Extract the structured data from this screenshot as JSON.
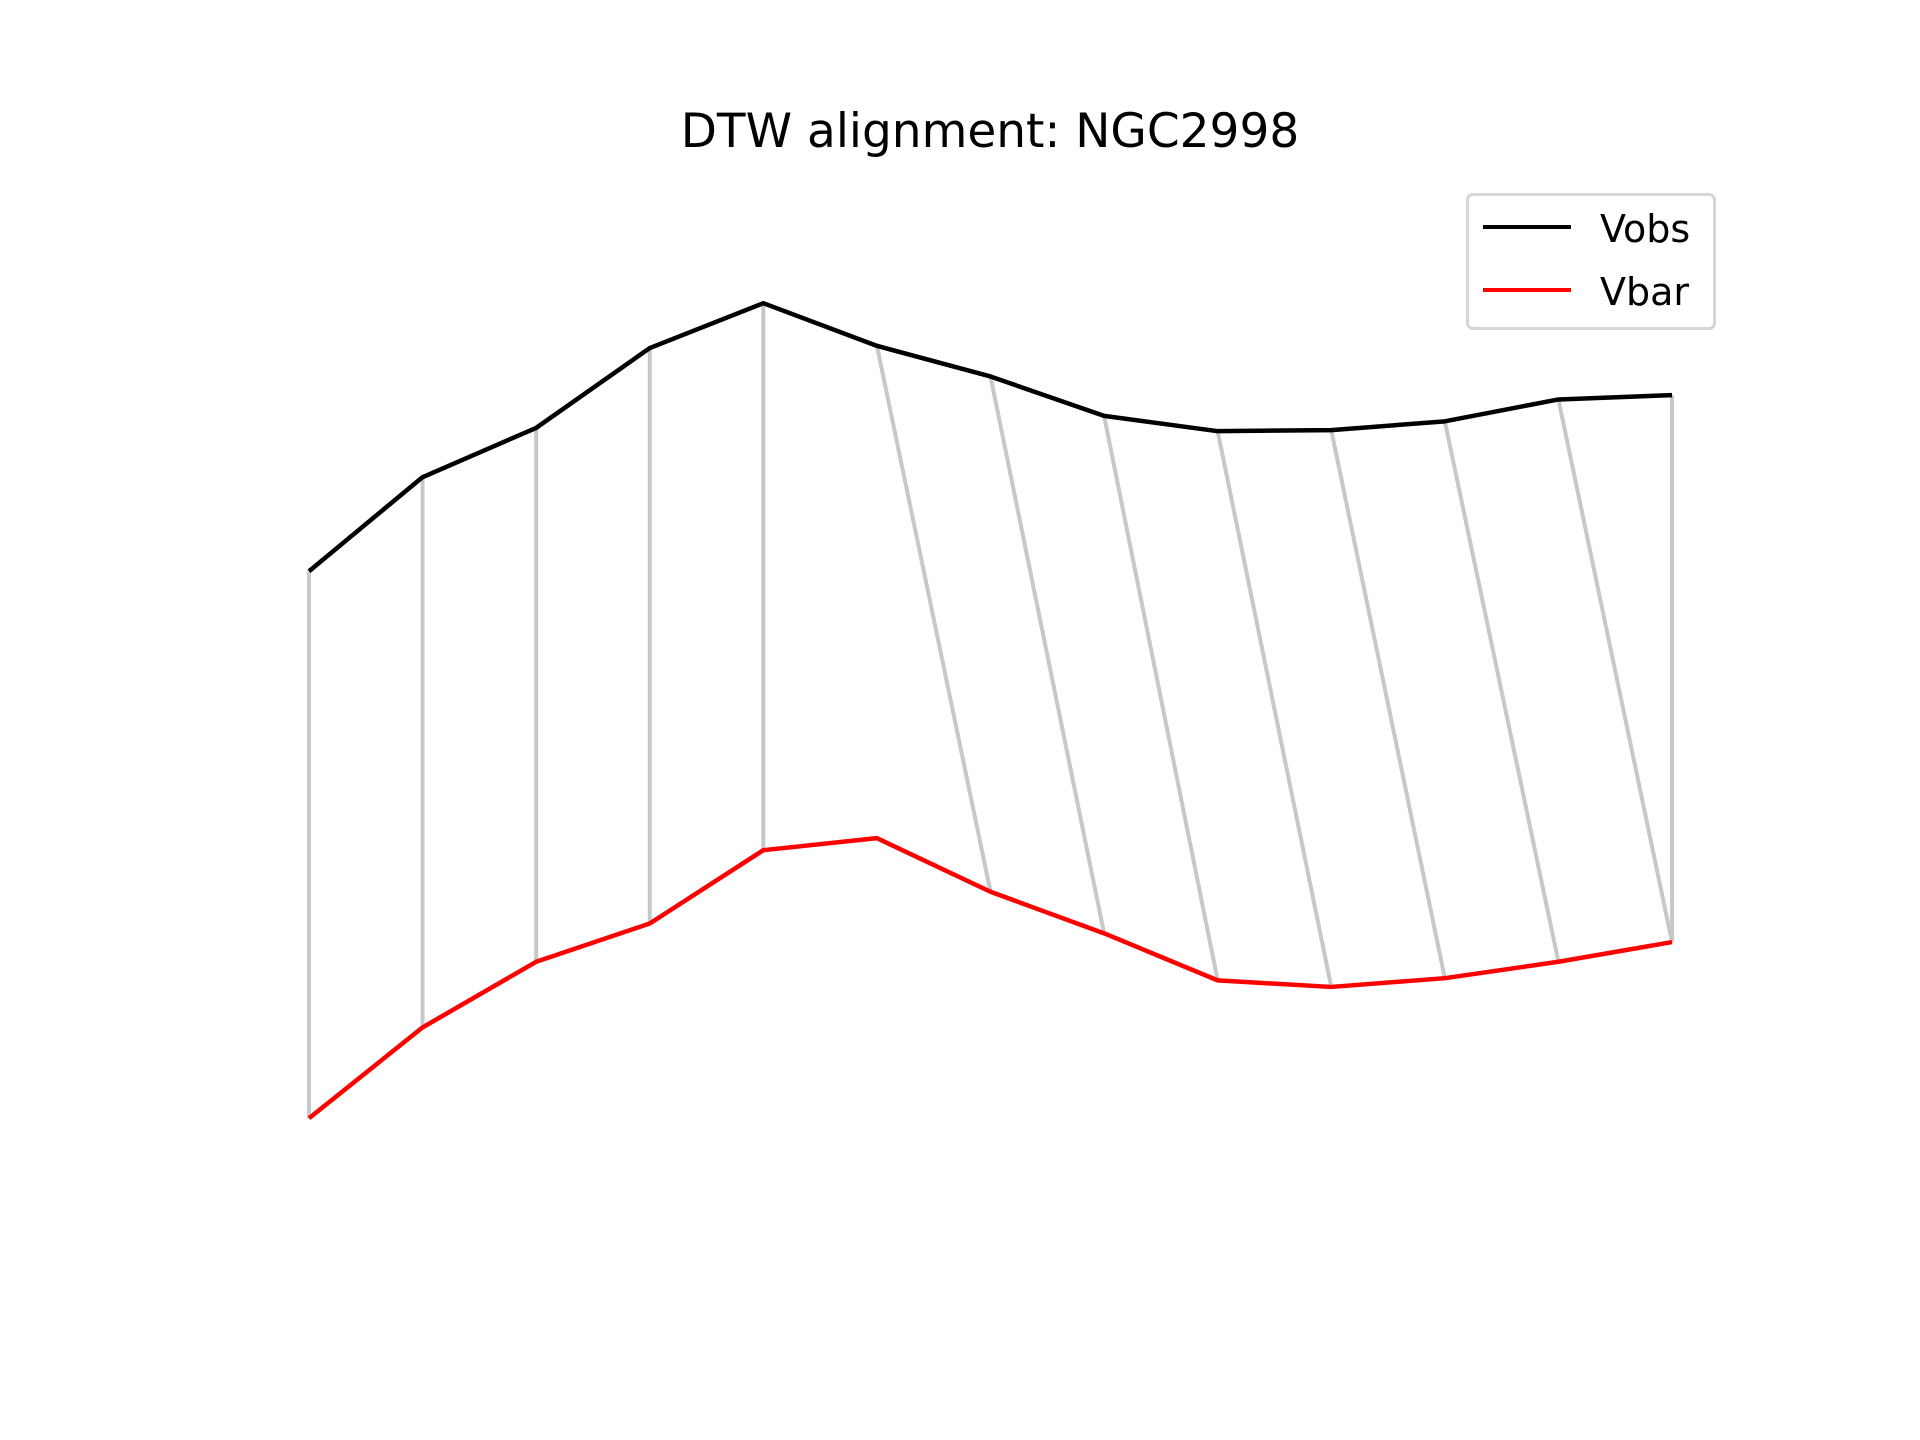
{
  "chart_data": {
    "type": "line",
    "title": "DTW alignment: NGC2998",
    "xlabel": "",
    "ylabel": "",
    "axes_visible": false,
    "grid": false,
    "legend_position": "top-right",
    "x": [
      0,
      1,
      2,
      3,
      4,
      5,
      6,
      7,
      8,
      9,
      10,
      11,
      12
    ],
    "ylim": [
      0,
      1
    ],
    "series": [
      {
        "name": "Vobs",
        "color": "#000000",
        "values": [
          0.636,
          0.722,
          0.767,
          0.84,
          0.881,
          0.842,
          0.814,
          0.778,
          0.764,
          0.765,
          0.773,
          0.793,
          0.797
        ]
      },
      {
        "name": "Vbar",
        "color": "#ff0000",
        "values": [
          0.136,
          0.219,
          0.279,
          0.314,
          0.381,
          0.392,
          0.343,
          0.305,
          0.262,
          0.256,
          0.264,
          0.279,
          0.297
        ]
      }
    ],
    "alignment": {
      "color": "#c8c8c8",
      "pairs": [
        [
          0,
          0
        ],
        [
          1,
          1
        ],
        [
          2,
          2
        ],
        [
          3,
          3
        ],
        [
          4,
          4
        ],
        [
          5,
          6
        ],
        [
          6,
          7
        ],
        [
          7,
          8
        ],
        [
          8,
          9
        ],
        [
          9,
          10
        ],
        [
          10,
          11
        ],
        [
          11,
          12
        ],
        [
          12,
          12
        ]
      ]
    }
  }
}
